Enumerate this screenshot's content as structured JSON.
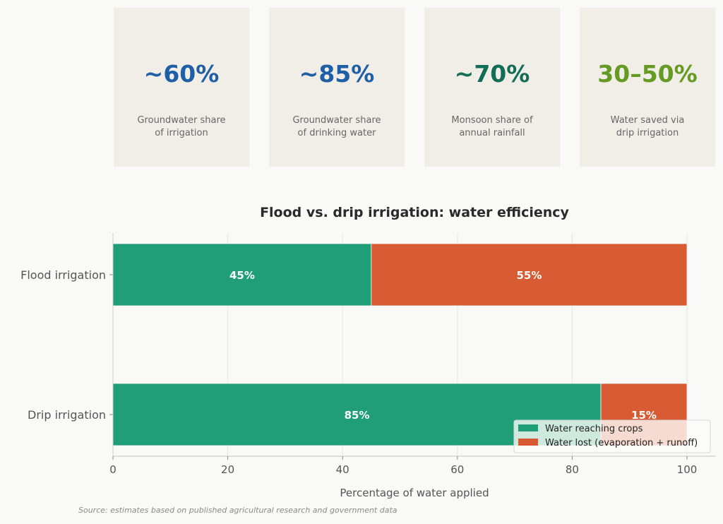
{
  "stat_cards": [
    {
      "value": "~60%",
      "label_line1": "Groundwater share",
      "label_line2": "of irrigation",
      "color": "#1f5fa6"
    },
    {
      "value": "~85%",
      "label_line1": "Groundwater share",
      "label_line2": "of drinking water",
      "color": "#1f5fa6"
    },
    {
      "value": "~70%",
      "label_line1": "Monsoon share of",
      "label_line2": "annual rainfall",
      "color": "#126d56"
    },
    {
      "value": "30–50%",
      "label_line1": "Water saved via",
      "label_line2": "drip irrigation",
      "color": "#659a23"
    }
  ],
  "chart_data": {
    "type": "bar",
    "orientation": "horizontal",
    "stacked": true,
    "title": "Flood vs. drip irrigation: water efficiency",
    "xlabel": "Percentage of water applied",
    "ylabel": "",
    "categories": [
      "Flood irrigation",
      "Drip irrigation"
    ],
    "series": [
      {
        "name": "Water reaching crops",
        "values": [
          45,
          85
        ],
        "labels": [
          "45%",
          "85%"
        ],
        "color": "#1f9e77"
      },
      {
        "name": "Water lost (evaporation + runoff)",
        "values": [
          55,
          15
        ],
        "labels": [
          "55%",
          "15%"
        ],
        "color": "#d95b33"
      }
    ],
    "xlim": [
      0,
      105
    ],
    "xticks": [
      0,
      20,
      40,
      60,
      80,
      100
    ],
    "grid": true,
    "legend_position": "bottom-right"
  },
  "source_note": "Source: estimates based on published agricultural research and government data"
}
